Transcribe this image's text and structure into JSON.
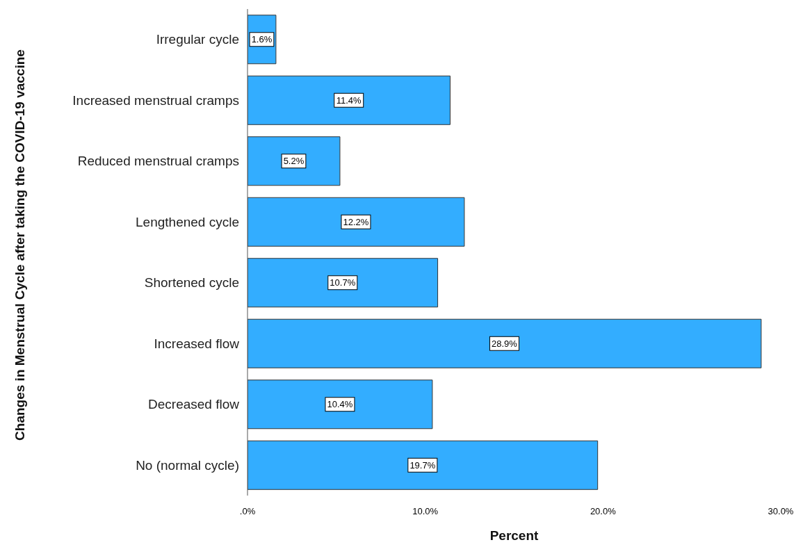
{
  "chart_data": {
    "type": "bar",
    "orientation": "horizontal",
    "xlabel": "Percent",
    "ylabel": "Changes in Menstrual Cycle after taking the COVID-19 vaccine",
    "categories": [
      "Irregular cycle",
      "Increased menstrual cramps",
      "Reduced menstrual cramps",
      "Lengthened cycle",
      "Shortened cycle",
      "Increased flow",
      "Decreased flow",
      "No (normal cycle)"
    ],
    "values": [
      1.6,
      11.4,
      5.2,
      12.2,
      10.7,
      28.9,
      10.4,
      19.7
    ],
    "value_labels": [
      "1.6%",
      "11.4%",
      "5.2%",
      "12.2%",
      "10.7%",
      "28.9%",
      "10.4%",
      "19.7%"
    ],
    "color": "#33adff",
    "xlim": [
      0,
      30
    ],
    "xticks": [
      {
        "value": 0,
        "label": ".0%"
      },
      {
        "value": 10,
        "label": "10.0%"
      },
      {
        "value": 20,
        "label": "20.0%"
      },
      {
        "value": 30,
        "label": "30.0%"
      }
    ],
    "grid": false
  }
}
